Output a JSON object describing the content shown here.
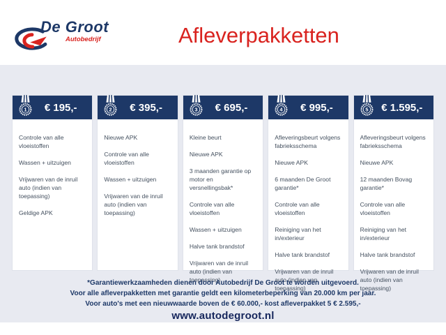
{
  "logo": {
    "name": "De Groot",
    "subtitle": "Autobedrijf"
  },
  "title": "Afleverpakketten",
  "colors": {
    "navy": "#1d3867",
    "red": "#d9231f",
    "background": "#e8eaf1"
  },
  "packages": [
    {
      "number": "1",
      "price": "€ 195,-",
      "items": [
        "Controle van alle vloeistoffen",
        "Wassen + uitzuigen",
        "Vrijwaren van de inruil auto (indien van toepassing)",
        "Geldige APK"
      ]
    },
    {
      "number": "2",
      "price": "€ 395,-",
      "items": [
        "Nieuwe APK",
        "Controle van alle vloeistoffen",
        "Wassen + uitzuigen",
        "Vrijwaren van de inruil auto (indien van toepassing)"
      ]
    },
    {
      "number": "3",
      "price": "€ 695,-",
      "items": [
        "Kleine beurt",
        "Nieuwe APK",
        "3 maanden garantie op motor en versnellingsbak*",
        "Controle van alle vloeistoffen",
        "Wassen + uitzuigen",
        "Halve tank brandstof",
        "Vrijwaren van de inruil auto (indien van toepassing)"
      ]
    },
    {
      "number": "4",
      "price": "€ 995,-",
      "items": [
        "Afleveringsbeurt volgens fabrieksschema",
        "Nieuwe APK",
        "6 maanden De Groot garantie*",
        "Controle van alle vloeistoffen",
        "Reiniging van het in/exterieur",
        "Halve tank brandstof",
        "Vrijwaren van de inruil auto (indien van toepassing)"
      ]
    },
    {
      "number": "5",
      "price": "€ 1.595,-",
      "items": [
        "Afleveringsbeurt volgens fabrieksschema",
        "Nieuwe APK",
        "12 maanden Bovag garantie*",
        "Controle van alle vloeistoffen",
        "Reiniging van het in/exterieur",
        "Halve tank brandstof",
        "Vrijwaren van de inruil auto (indien van toepassing)"
      ]
    }
  ],
  "footer": {
    "notes": [
      "*Garantiewerkzaamheden dienen door Autobedrijf De Groot te worden uitgevoerd.",
      "Voor alle afleverpakketten met garantie geldt een kilometerbeperking van 20.000 km per jaar.",
      "Voor auto's met een nieuwwaarde boven de € 60.000,- kost afleverpakket 5 € 2.595,-"
    ],
    "website": "www.autodegroot.nl"
  }
}
